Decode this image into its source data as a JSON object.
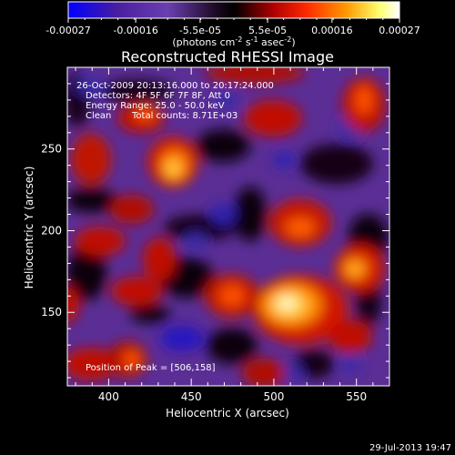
{
  "colorbar": {
    "tick_labels": [
      "-0.00027",
      "-0.00016",
      "-5.5e-05",
      "5.5e-05",
      "0.00016",
      "0.00027"
    ],
    "tick_values": [
      -0.00027,
      -0.00016,
      -5.5e-05,
      5.5e-05,
      0.00016,
      0.00027
    ],
    "range": [
      -0.00027,
      0.00027
    ],
    "units_prefix": "(photons cm",
    "units_sup1": "-2",
    "units_mid": " s",
    "units_sup2": "-1",
    "units_mid2": " asec",
    "units_sup3": "-2",
    "units_suffix": ")",
    "colors": [
      "#0000ff",
      "#5a1ea0",
      "#6a3fb0",
      "#000000",
      "#b00000",
      "#ff3000",
      "#ff9000",
      "#ffff80",
      "#ffffff"
    ]
  },
  "chart_data": {
    "type": "heatmap",
    "title": "Reconstructed RHESSI Image",
    "xlabel": "Heliocentric X (arcsec)",
    "ylabel": "Heliocentric Y (arcsec)",
    "xlim": [
      375,
      570
    ],
    "ylim": [
      105,
      300
    ],
    "x_ticks": [
      400,
      450,
      500,
      550
    ],
    "y_ticks": [
      150,
      200,
      250
    ],
    "x_tick_labels": [
      "400",
      "450",
      "500",
      "550"
    ],
    "y_tick_labels": [
      "150",
      "200",
      "250"
    ],
    "peak": [
      506,
      158
    ]
  },
  "annotations": {
    "time_range": "26-Oct-2009 20:13:16.000 to 20:17:24.000",
    "detectors": "Detectors: 4F 5F 6F 7F 8F, Att 0",
    "energy_range": "Energy Range: 25.0 - 50.0 keV",
    "method": "Clean",
    "total_counts": "Total counts: 8.71E+03",
    "peak_position": "Position of Peak = [506,158]"
  },
  "footer": {
    "timestamp": "29-Jul-2013 19:47"
  }
}
